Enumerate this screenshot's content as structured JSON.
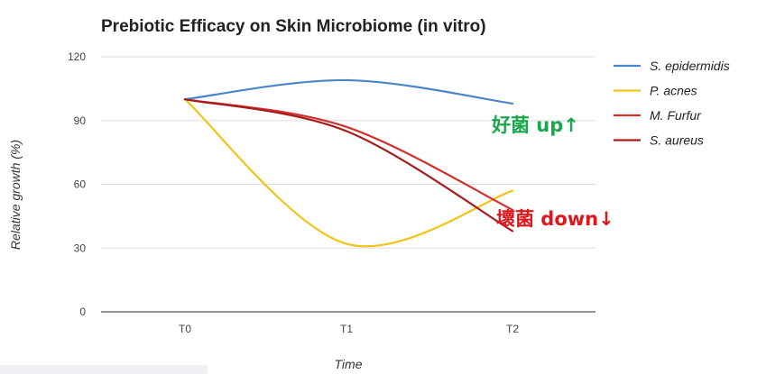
{
  "chart_data": {
    "type": "line",
    "title": "Prebiotic Efficacy on Skin Microbiome (in vitro)",
    "xlabel": "Time",
    "ylabel": "Relative growth (%)",
    "x": [
      "T0",
      "T1",
      "T2"
    ],
    "ylim": [
      0,
      120
    ],
    "yticks": [
      "0",
      "30",
      "60",
      "90",
      "120"
    ],
    "grid": true,
    "legend_position": "right",
    "series": [
      {
        "name": "S. epidermidis",
        "values": [
          100,
          109,
          98
        ],
        "color": "#4a86c8"
      },
      {
        "name": "P. acnes",
        "values": [
          100,
          32,
          57
        ],
        "color": "#f0c419"
      },
      {
        "name": "M. Furfur",
        "values": [
          100,
          87,
          48
        ],
        "color": "#d0312d"
      },
      {
        "name": "S. aureus",
        "values": [
          100,
          85,
          38
        ],
        "color": "#a61c1c"
      }
    ],
    "annotations": [
      {
        "text": "好菌 up↑",
        "color": "#1aa64a",
        "anchor_value": 90
      },
      {
        "text": "壞菌 down↓",
        "color": "#e0161c",
        "anchor_value": 44
      }
    ]
  }
}
